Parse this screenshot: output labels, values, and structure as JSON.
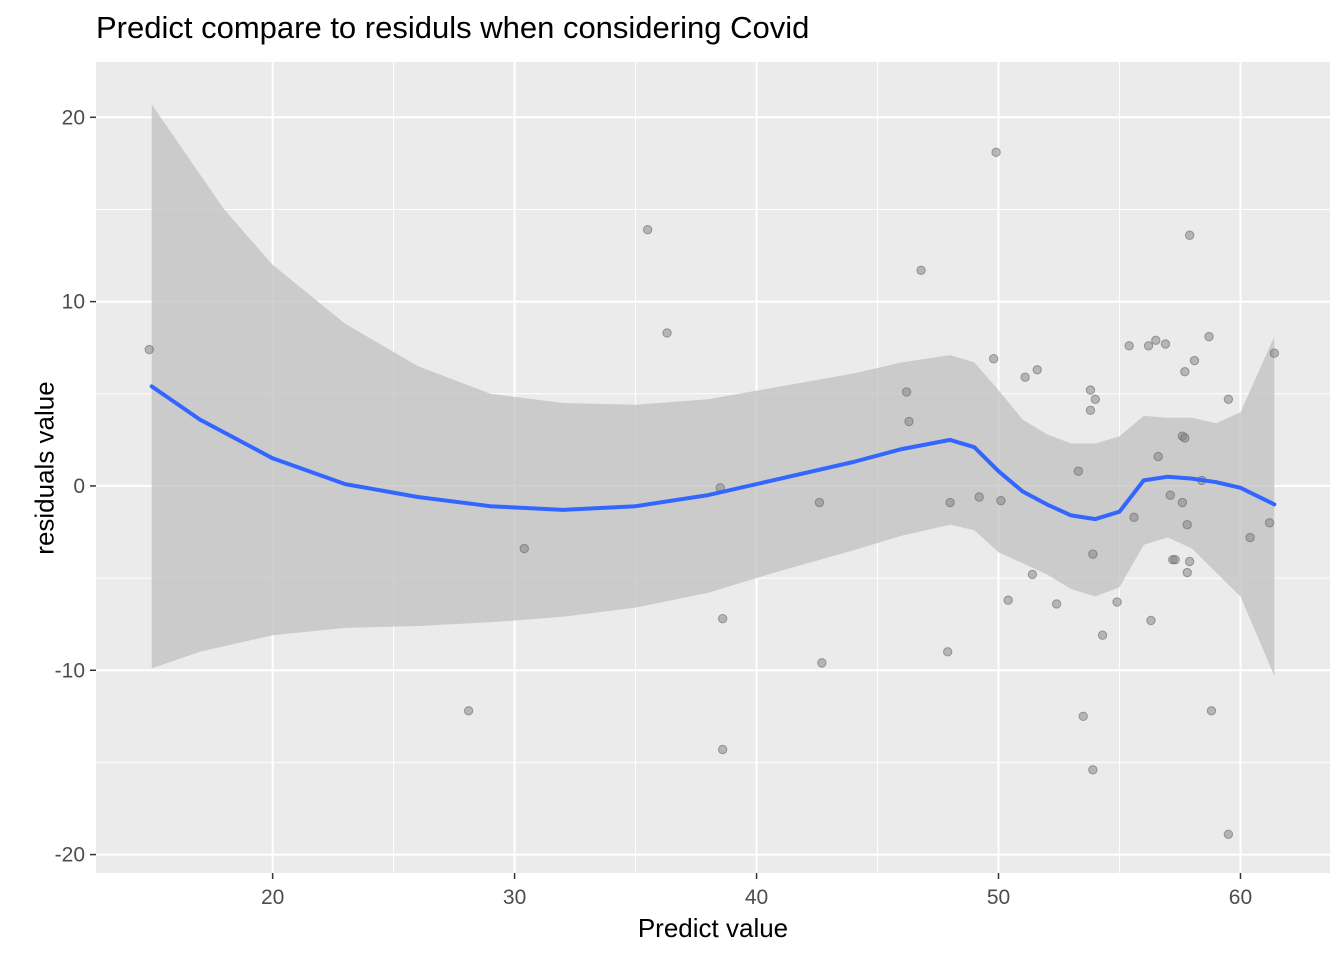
{
  "chart_data": {
    "type": "scatter",
    "title": "Predict compare to residuls when considering Covid",
    "xlabel": "Predict value",
    "ylabel": "residuals value",
    "xlim": [
      12.7,
      63.7
    ],
    "ylim": [
      -21.0,
      23.0
    ],
    "x_ticks": [
      20,
      30,
      40,
      50,
      60
    ],
    "y_ticks": [
      -20,
      -10,
      0,
      10,
      20
    ],
    "x_tick_labels": [
      "20",
      "30",
      "40",
      "50",
      "60"
    ],
    "y_tick_labels": [
      "-20",
      "-10",
      "0",
      "10",
      "20"
    ],
    "grid": true,
    "background": "#ebebeb",
    "colors": {
      "points": "#808080",
      "smooth_line": "#3366ff",
      "ribbon": "#c0c0c0"
    },
    "points": [
      [
        14.9,
        7.4
      ],
      [
        28.1,
        -12.2
      ],
      [
        30.4,
        -3.4
      ],
      [
        35.5,
        13.9
      ],
      [
        36.3,
        8.3
      ],
      [
        38.5,
        -0.1
      ],
      [
        38.6,
        -7.2
      ],
      [
        38.6,
        -14.3
      ],
      [
        42.6,
        -0.9
      ],
      [
        42.7,
        -9.6
      ],
      [
        46.2,
        5.1
      ],
      [
        46.3,
        3.5
      ],
      [
        46.8,
        11.7
      ],
      [
        47.9,
        -9.0
      ],
      [
        48.0,
        -0.9
      ],
      [
        49.2,
        -0.6
      ],
      [
        49.8,
        6.9
      ],
      [
        49.9,
        18.1
      ],
      [
        50.1,
        -0.8
      ],
      [
        50.4,
        -6.2
      ],
      [
        51.1,
        5.9
      ],
      [
        51.4,
        -4.8
      ],
      [
        51.6,
        6.3
      ],
      [
        52.4,
        -6.4
      ],
      [
        53.3,
        0.8
      ],
      [
        53.5,
        -12.5
      ],
      [
        53.8,
        5.2
      ],
      [
        53.8,
        4.1
      ],
      [
        53.9,
        -3.7
      ],
      [
        53.9,
        -15.4
      ],
      [
        54.0,
        4.7
      ],
      [
        54.3,
        -8.1
      ],
      [
        54.9,
        -6.3
      ],
      [
        55.4,
        7.6
      ],
      [
        55.6,
        -1.7
      ],
      [
        56.2,
        7.6
      ],
      [
        56.3,
        -7.3
      ],
      [
        56.5,
        7.9
      ],
      [
        56.6,
        1.6
      ],
      [
        56.9,
        7.7
      ],
      [
        57.1,
        -0.5
      ],
      [
        57.2,
        -4.0
      ],
      [
        57.3,
        -4.0
      ],
      [
        57.6,
        2.7
      ],
      [
        57.6,
        -0.9
      ],
      [
        57.7,
        6.2
      ],
      [
        57.7,
        2.6
      ],
      [
        57.8,
        -2.1
      ],
      [
        57.8,
        -4.7
      ],
      [
        57.9,
        13.6
      ],
      [
        57.9,
        -4.1
      ],
      [
        58.1,
        6.8
      ],
      [
        58.4,
        0.3
      ],
      [
        58.7,
        8.1
      ],
      [
        58.8,
        -12.2
      ],
      [
        59.5,
        4.7
      ],
      [
        59.5,
        -18.9
      ],
      [
        60.4,
        -2.8
      ],
      [
        61.2,
        -2.0
      ],
      [
        61.4,
        7.2
      ]
    ],
    "smooth": [
      [
        15.0,
        5.4
      ],
      [
        17.0,
        3.6
      ],
      [
        20.0,
        1.5
      ],
      [
        23.0,
        0.1
      ],
      [
        26.0,
        -0.6
      ],
      [
        29.0,
        -1.1
      ],
      [
        32.0,
        -1.3
      ],
      [
        35.0,
        -1.1
      ],
      [
        38.0,
        -0.5
      ],
      [
        41.0,
        0.4
      ],
      [
        44.0,
        1.3
      ],
      [
        46.0,
        2.0
      ],
      [
        48.0,
        2.5
      ],
      [
        49.0,
        2.1
      ],
      [
        50.0,
        0.8
      ],
      [
        51.0,
        -0.3
      ],
      [
        52.0,
        -1.0
      ],
      [
        53.0,
        -1.6
      ],
      [
        54.0,
        -1.8
      ],
      [
        55.0,
        -1.4
      ],
      [
        56.0,
        0.3
      ],
      [
        57.0,
        0.5
      ],
      [
        58.0,
        0.4
      ],
      [
        59.0,
        0.2
      ],
      [
        60.0,
        -0.1
      ],
      [
        61.4,
        -1.0
      ]
    ],
    "ribbon_upper": [
      [
        15.0,
        20.7
      ],
      [
        18.0,
        15.0
      ],
      [
        20.0,
        12.0
      ],
      [
        23.0,
        8.8
      ],
      [
        26.0,
        6.5
      ],
      [
        29.0,
        5.0
      ],
      [
        32.0,
        4.5
      ],
      [
        35.0,
        4.4
      ],
      [
        38.0,
        4.7
      ],
      [
        41.0,
        5.4
      ],
      [
        44.0,
        6.1
      ],
      [
        46.0,
        6.7
      ],
      [
        48.0,
        7.1
      ],
      [
        49.0,
        6.7
      ],
      [
        50.0,
        5.2
      ],
      [
        51.0,
        3.6
      ],
      [
        52.0,
        2.8
      ],
      [
        53.0,
        2.3
      ],
      [
        54.0,
        2.3
      ],
      [
        55.0,
        2.7
      ],
      [
        56.0,
        3.8
      ],
      [
        57.0,
        3.7
      ],
      [
        58.0,
        3.7
      ],
      [
        59.0,
        3.4
      ],
      [
        60.0,
        4.0
      ],
      [
        61.4,
        8.1
      ]
    ],
    "ribbon_lower": [
      [
        15.0,
        -9.9
      ],
      [
        17.0,
        -9.0
      ],
      [
        20.0,
        -8.1
      ],
      [
        23.0,
        -7.7
      ],
      [
        26.0,
        -7.6
      ],
      [
        29.0,
        -7.4
      ],
      [
        32.0,
        -7.1
      ],
      [
        35.0,
        -6.6
      ],
      [
        38.0,
        -5.8
      ],
      [
        41.0,
        -4.6
      ],
      [
        44.0,
        -3.5
      ],
      [
        46.0,
        -2.7
      ],
      [
        48.0,
        -2.1
      ],
      [
        49.0,
        -2.4
      ],
      [
        50.0,
        -3.6
      ],
      [
        51.0,
        -4.2
      ],
      [
        52.0,
        -4.8
      ],
      [
        53.0,
        -5.6
      ],
      [
        54.0,
        -6.0
      ],
      [
        55.0,
        -5.5
      ],
      [
        56.0,
        -3.2
      ],
      [
        57.0,
        -2.8
      ],
      [
        58.0,
        -3.4
      ],
      [
        59.0,
        -4.7
      ],
      [
        60.0,
        -6.0
      ],
      [
        61.4,
        -10.3
      ]
    ]
  }
}
